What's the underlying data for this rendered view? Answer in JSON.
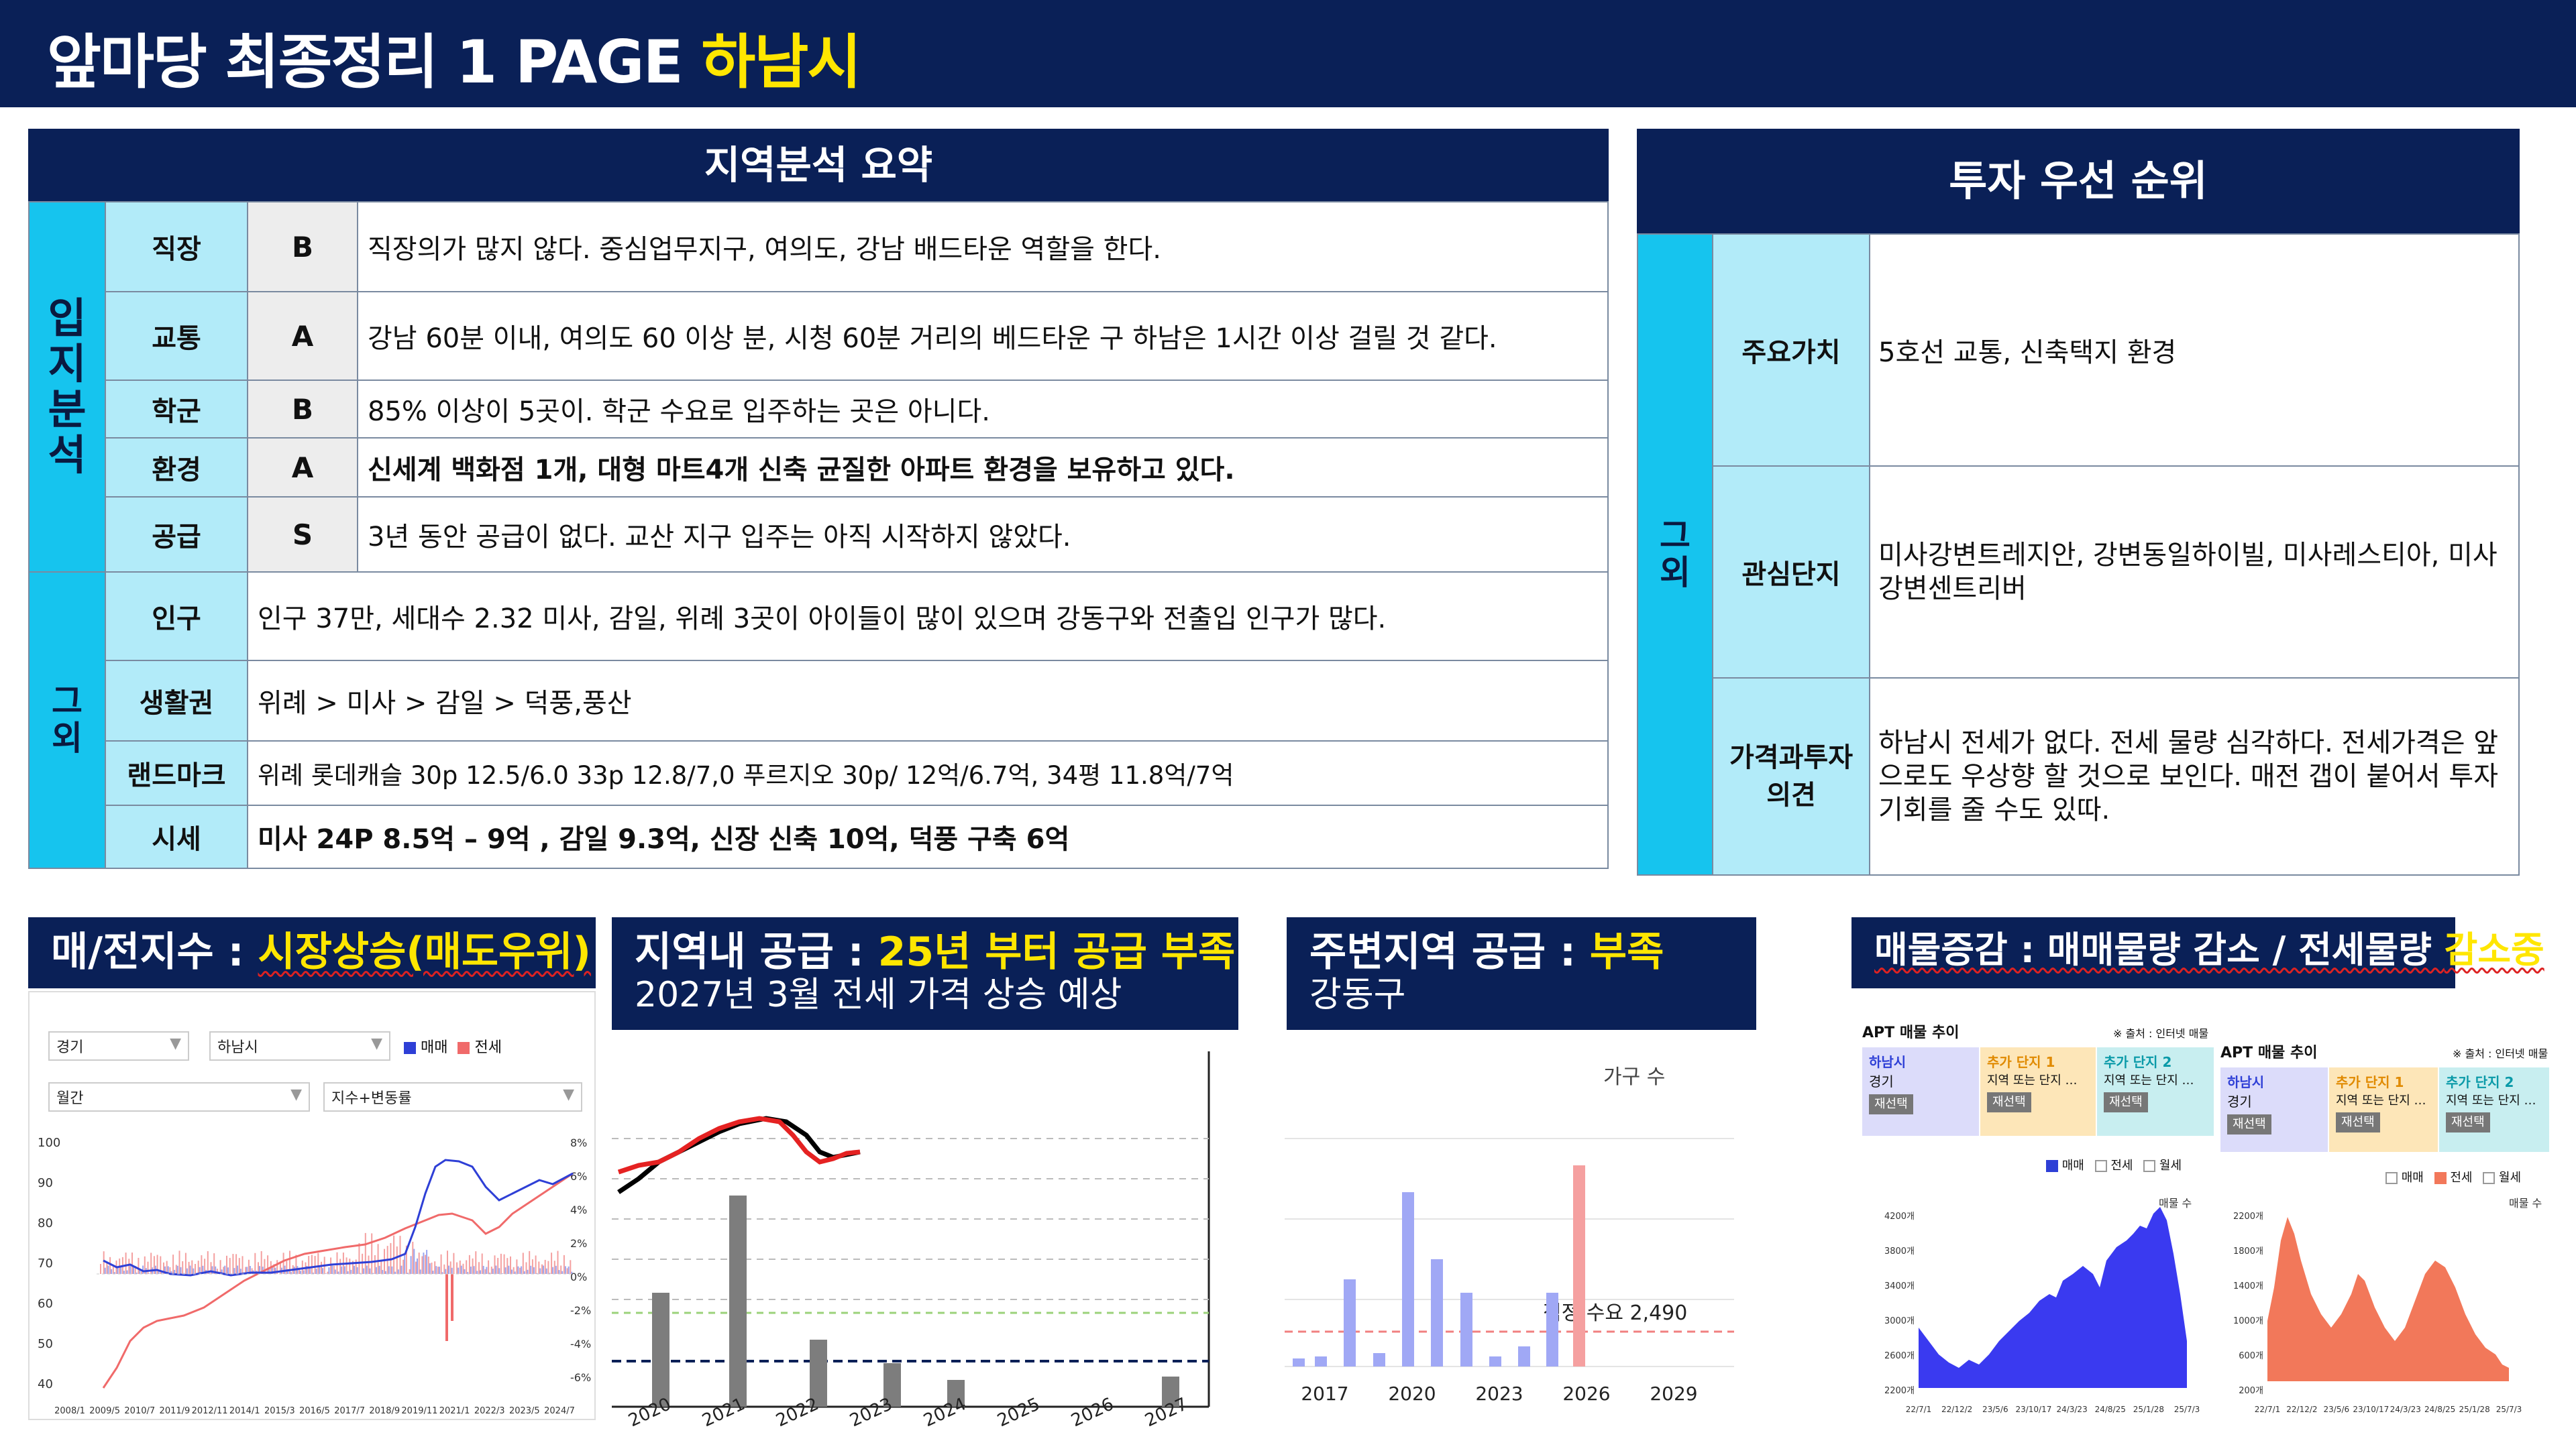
{
  "header": {
    "title_white": "앞마당 최종정리 1 PAGE",
    "title_yellow": "하남시"
  },
  "summary": {
    "title": "지역분석 요약",
    "group1": "입지분석",
    "group2": "그외",
    "rows1": [
      {
        "label": "직장",
        "grade": "B",
        "desc": "직장의가  많지 않다. 중심업무지구, 여의도, 강남 배드타운 역할을 한다."
      },
      {
        "label": "교통",
        "grade": "A",
        "desc": "강남 60분 이내, 여의도 60 이상 분, 시청 60분 거리의 베드타운 구 하남은 1시간 이상 걸릴 것 같다."
      },
      {
        "label": "학군",
        "grade": "B",
        "desc": "85% 이상이 5곳이. 학군 수요로 입주하는 곳은 아니다."
      },
      {
        "label": "환경",
        "grade": "A",
        "desc": "신세계 백화점 1개, 대형 마트4개 신축 균질한 아파트 환경을 보유하고 있다."
      },
      {
        "label": "공급",
        "grade": "S",
        "desc": "3년 동안 공급이 없다. 교산 지구 입주는 아직 시작하지 않았다."
      }
    ],
    "rows2": [
      {
        "label": "인구",
        "desc": "인구 37만, 세대수 2.32 미사, 감일, 위례 3곳이 아이들이 많이 있으며 강동구와 전출입 인구가 많다."
      },
      {
        "label": "생활권",
        "desc": "위례 > 미사 > 감일 > 덕풍,풍산"
      },
      {
        "label": "랜드마크",
        "desc": "위례 롯데캐슬 30p 12.5/6.0 33p 12.8/7,0  푸르지오  30p/ 12억/6.7억, 34평 11.8억/7억"
      },
      {
        "label": "시세",
        "desc": "미사 24P 8.5억 – 9억 , 감일 9.3억, 신장 신축 10억, 덕풍 구축 6억"
      }
    ]
  },
  "priority": {
    "title": "투자 우선 순위",
    "group": "그외",
    "rows": [
      {
        "label": "주요가치",
        "desc": "5호선 교통, 신축택지 환경"
      },
      {
        "label": "관심단지",
        "desc": "미사강변트레지안, 강변동일하이빌, 미사레스티아, 미사강변센트리버"
      },
      {
        "label": "가격과투자의견",
        "desc": "하남시 전세가 없다. 전세 물량 심각하다. 전세가격은 앞으로도 우상향 할 것으로 보인다. 매전 갭이 붙어서 투자 기회를 줄 수도 있따."
      }
    ]
  },
  "panel1": {
    "label_white": "매/전지수 : ",
    "label_yellow": "시장상승(매도우위)",
    "select_region": "경기",
    "select_city": "하남시",
    "select_period": "월간",
    "select_mode": "지수+변동률",
    "legend": [
      "매매",
      "전세"
    ],
    "y_left": [
      "100",
      "90",
      "80",
      "70",
      "60",
      "50",
      "40"
    ],
    "y_right": [
      "8%",
      "6%",
      "4%",
      "2%",
      "0%",
      "-2%",
      "-4%",
      "-6%"
    ],
    "x_ticks": [
      "2008/1",
      "2009/5",
      "2010/7",
      "2011/9",
      "2012/11",
      "2014/1",
      "2015/3",
      "2016/5",
      "2017/7",
      "2018/9",
      "2019/11",
      "2021/1",
      "2022/3",
      "2023/5",
      "2024/7"
    ],
    "colors": {
      "sale": "#2e3fd6",
      "jeonse": "#f06a6a"
    }
  },
  "panel2": {
    "label_white": "지역내 공급 : ",
    "label_yellow": "25년 부터 공급 부족",
    "sub": "2027년 3월 전세 가격 상승 예상",
    "x_ticks": [
      "2020",
      "2021",
      "2022",
      "2023",
      "2024",
      "2025",
      "2026",
      "2027"
    ]
  },
  "panel3": {
    "label_white": "주변지역 공급 : ",
    "label_yellow": "부족",
    "sub": "강동구",
    "legend": "가구 수",
    "demand_label": "적정 수요 2,490",
    "x_ticks": [
      "2017",
      "2020",
      "2023",
      "2026",
      "2029"
    ]
  },
  "panel4": {
    "label": "매물증감 : 매매물량 감소 / 전세물량 ",
    "label_yellow": "감소중",
    "left": {
      "title": "APT 매물 추이",
      "source": "※ 출처 : 인터넷 매물",
      "cards": [
        {
          "t": "하남시",
          "s": "경기",
          "b": "재선택"
        },
        {
          "t": "추가 단지 1",
          "s": "지역 또는 단지 …",
          "b": "재선택"
        },
        {
          "t": "추가 단지 2",
          "s": "지역 또는 단지 …",
          "b": "재선택"
        }
      ],
      "legend": [
        "매매",
        "전세",
        "월세"
      ],
      "axis_label": "매물 수",
      "y_ticks": [
        "4200개",
        "3800개",
        "3400개",
        "3000개",
        "2600개",
        "2200개"
      ],
      "x_ticks": [
        "22/7/1",
        "22/12/2",
        "23/5/6",
        "23/10/17",
        "24/3/23",
        "24/8/25",
        "25/1/28",
        "25/7/3"
      ]
    },
    "right": {
      "title": "APT 매물 추이",
      "source": "※ 출처 : 인터넷 매물",
      "cards": [
        {
          "t": "하남시",
          "s": "경기",
          "b": "재선택"
        },
        {
          "t": "추가 단지 1",
          "s": "지역 또는 단지 …",
          "b": "재선택"
        },
        {
          "t": "추가 단지 2",
          "s": "지역 또는 단지 …",
          "b": "재선택"
        }
      ],
      "legend": [
        "매매",
        "전세",
        "월세"
      ],
      "axis_label": "매물 수",
      "y_ticks": [
        "2200개",
        "1800개",
        "1400개",
        "1000개",
        "600개",
        "200개"
      ],
      "x_ticks": [
        "22/7/1",
        "22/12/2",
        "23/5/6",
        "23/10/17",
        "24/3/23",
        "24/8/25",
        "25/1/28",
        "25/7/3"
      ]
    }
  }
}
